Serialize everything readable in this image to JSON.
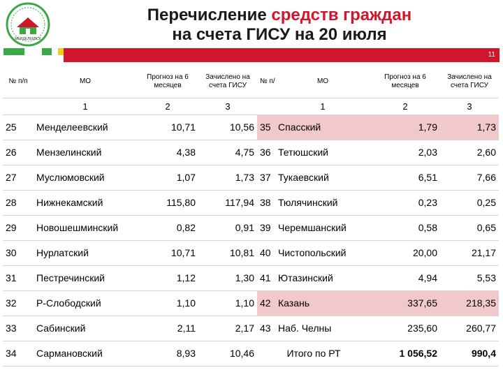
{
  "title": {
    "part1": "Перечисление ",
    "highlight": "средств граждан",
    "line2": "на счета ГИСУ на 20 июля"
  },
  "slide_number": "11",
  "logo": {
    "text": "МЕНДЕЛЕЕВСК"
  },
  "colors": {
    "accent_red": "#d0162c",
    "stripe_green": "#3aa845",
    "stripe_yellow": "#f0d01a",
    "highlight_pink": "#f2c9cb"
  },
  "table": {
    "headers": {
      "num": "№ п/п",
      "mo": "МО",
      "forecast": "Прогноз на 6 месяцев",
      "credited": "Зачислено на счета ГИСУ"
    },
    "index_row": {
      "mo": "1",
      "forecast": "2",
      "credited": "3"
    },
    "rows": [
      {
        "left": {
          "num": "25",
          "name": "Менделеевский",
          "forecast": "10,71",
          "credited": "10,56"
        },
        "right": {
          "num": "35",
          "name": "Спасский",
          "forecast": "1,79",
          "credited": "1,73"
        }
      },
      {
        "left": {
          "num": "26",
          "name": "Мензелинский",
          "forecast": "4,38",
          "credited": "4,75"
        },
        "right": {
          "num": "36",
          "name": "Тетюшский",
          "forecast": "2,03",
          "credited": "2,60"
        }
      },
      {
        "left": {
          "num": "27",
          "name": "Муслюмовский",
          "forecast": "1,07",
          "credited": "1,73"
        },
        "right": {
          "num": "37",
          "name": "Тукаевский",
          "forecast": "6,51",
          "credited": "7,66"
        }
      },
      {
        "left": {
          "num": "28",
          "name": "Нижнекамский",
          "forecast": "115,80",
          "credited": "117,94"
        },
        "right": {
          "num": "38",
          "name": "Тюлячинский",
          "forecast": "0,23",
          "credited": "0,25"
        }
      },
      {
        "left": {
          "num": "29",
          "name": "Новошешминский",
          "forecast": "0,82",
          "credited": "0,91"
        },
        "right": {
          "num": "39",
          "name": "Черемшанский",
          "forecast": "0,58",
          "credited": "0,65"
        }
      },
      {
        "left": {
          "num": "30",
          "name": "Нурлатский",
          "forecast": "10,71",
          "credited": "10,81"
        },
        "right": {
          "num": "40",
          "name": "Чистопольский",
          "forecast": "20,00",
          "credited": "21,17"
        }
      },
      {
        "left": {
          "num": "31",
          "name": "Пестречинский",
          "forecast": "1,12",
          "credited": "1,30"
        },
        "right": {
          "num": "41",
          "name": "Ютазинский",
          "forecast": "4,94",
          "credited": "5,53"
        }
      },
      {
        "left": {
          "num": "32",
          "name": "Р-Слободский",
          "forecast": "1,10",
          "credited": "1,10"
        },
        "right": {
          "num": "42",
          "name": "Казань",
          "forecast": "337,65",
          "credited": "218,35"
        }
      },
      {
        "left": {
          "num": "33",
          "name": "Сабинский",
          "forecast": "2,11",
          "credited": "2,17"
        },
        "right": {
          "num": "43",
          "name": "Наб. Челны",
          "forecast": "235,60",
          "credited": "260,77"
        }
      },
      {
        "left": {
          "num": "34",
          "name": "Сармановский",
          "forecast": "8,93",
          "credited": "10,46"
        },
        "right": {
          "total_label": "Итого по РТ",
          "forecast": "1 056,52",
          "credited": "990,4"
        }
      }
    ]
  }
}
